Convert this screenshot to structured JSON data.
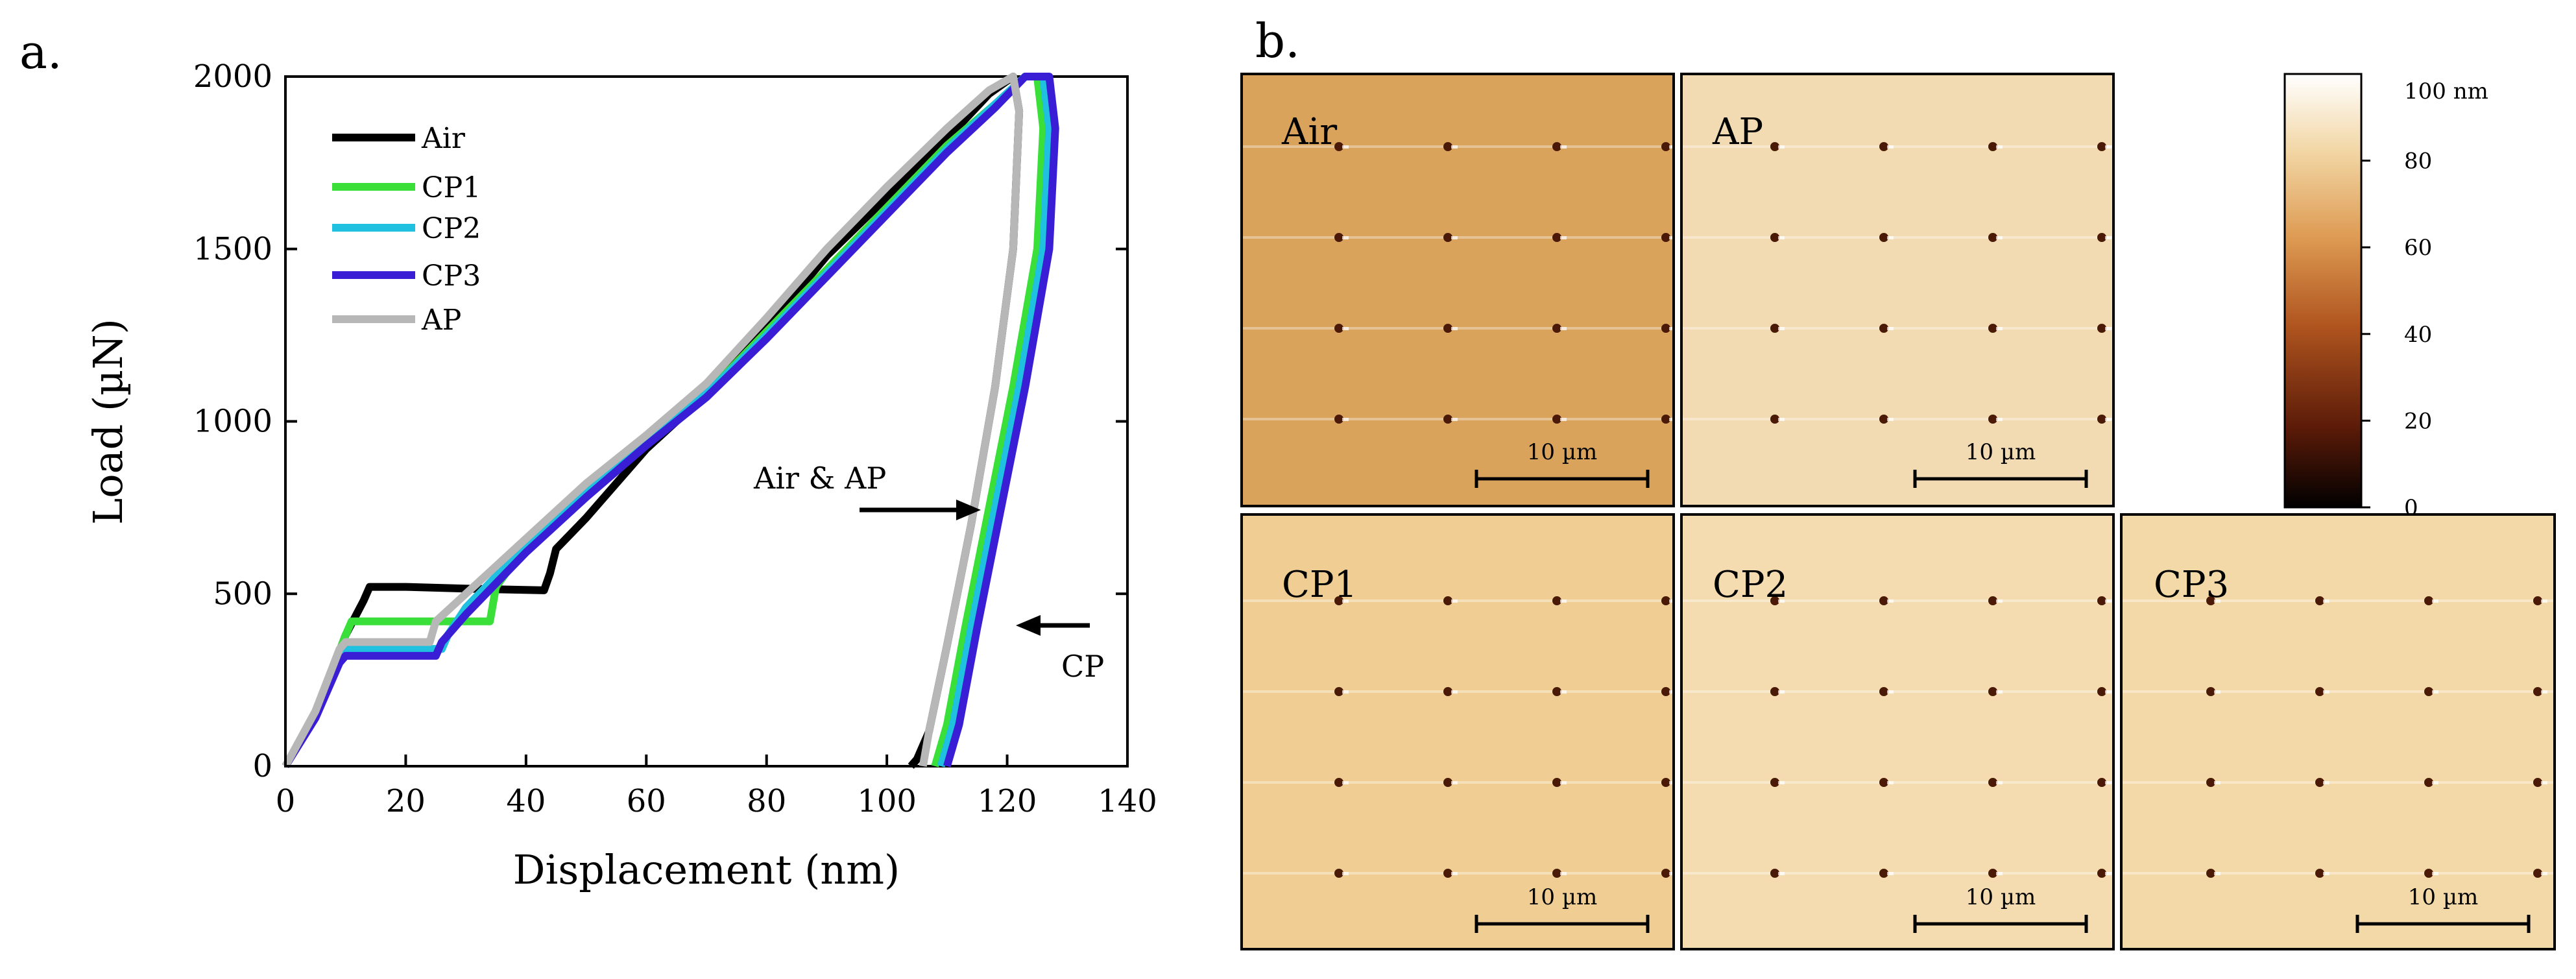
{
  "panel_a": {
    "label": "a."
  },
  "panel_b": {
    "label": "b."
  },
  "chart_data": {
    "type": "line",
    "title": "",
    "xlabel": "Displacement (nm)",
    "ylabel": "Load (µN)",
    "xlim": [
      0,
      140
    ],
    "ylim": [
      0,
      2000
    ],
    "xticks": [
      0,
      20,
      40,
      60,
      80,
      100,
      120,
      140
    ],
    "yticks": [
      0,
      500,
      1000,
      1500,
      2000
    ],
    "legend_position": "top-left",
    "series": [
      {
        "name": "Air",
        "color": "#000000",
        "x": [
          0,
          5,
          10,
          13,
          14,
          15,
          20,
          30,
          43,
          44,
          45,
          50,
          60,
          70,
          80,
          90,
          100,
          110,
          117,
          121,
          122,
          121,
          118,
          114,
          110,
          107,
          105,
          104
        ],
        "y": [
          0,
          150,
          380,
          480,
          520,
          520,
          520,
          515,
          510,
          560,
          630,
          720,
          920,
          1080,
          1270,
          1480,
          1650,
          1820,
          1950,
          2000,
          1900,
          1500,
          1100,
          700,
          350,
          100,
          20,
          0
        ]
      },
      {
        "name": "CP1",
        "color": "#3adf3a",
        "x": [
          0,
          5,
          10,
          11,
          15,
          25,
          34,
          35,
          40,
          50,
          60,
          70,
          80,
          90,
          100,
          110,
          118,
          123,
          125,
          126,
          125,
          121,
          117,
          113,
          110,
          108
        ],
        "y": [
          0,
          150,
          380,
          420,
          420,
          420,
          420,
          520,
          640,
          800,
          950,
          1080,
          1260,
          1440,
          1620,
          1800,
          1920,
          2000,
          2000,
          1850,
          1500,
          1100,
          750,
          400,
          120,
          0
        ]
      },
      {
        "name": "CP2",
        "color": "#1fc0e0",
        "x": [
          0,
          5,
          9,
          10,
          15,
          20,
          26,
          27,
          30,
          40,
          50,
          60,
          70,
          80,
          90,
          100,
          110,
          118,
          123,
          126,
          127,
          126,
          122,
          118,
          114,
          111,
          109
        ],
        "y": [
          0,
          150,
          320,
          340,
          340,
          340,
          340,
          380,
          460,
          640,
          790,
          940,
          1080,
          1250,
          1430,
          1610,
          1790,
          1920,
          2000,
          2000,
          1850,
          1500,
          1100,
          750,
          400,
          120,
          0
        ]
      },
      {
        "name": "CP3",
        "color": "#3a1ed6",
        "x": [
          0,
          5,
          9,
          10,
          15,
          20,
          25,
          26,
          30,
          40,
          50,
          60,
          70,
          80,
          90,
          100,
          110,
          118,
          123,
          127,
          128,
          127,
          123,
          119,
          115,
          112,
          110
        ],
        "y": [
          0,
          140,
          300,
          320,
          320,
          320,
          320,
          360,
          440,
          620,
          780,
          930,
          1070,
          1240,
          1420,
          1600,
          1780,
          1910,
          2000,
          2000,
          1850,
          1500,
          1100,
          750,
          400,
          120,
          0
        ]
      },
      {
        "name": "AP",
        "color": "#b7b7b7",
        "x": [
          0,
          5,
          9,
          10,
          15,
          20,
          24,
          25,
          30,
          40,
          50,
          60,
          70,
          80,
          90,
          100,
          110,
          117,
          121,
          122,
          121,
          118,
          114,
          110,
          107,
          106
        ],
        "y": [
          0,
          160,
          340,
          360,
          360,
          360,
          360,
          420,
          500,
          660,
          820,
          960,
          1110,
          1300,
          1500,
          1680,
          1850,
          1960,
          2000,
          1900,
          1500,
          1100,
          700,
          350,
          100,
          0
        ]
      }
    ],
    "annotations": [
      {
        "text": "Air & AP",
        "arrow_tip": [
          111,
          740
        ]
      },
      {
        "text": "CP",
        "arrow_tip": [
          118,
          410
        ]
      }
    ]
  },
  "afm_panels": [
    {
      "label": "Air",
      "scale_bar": "10 µm",
      "background": "#d9a35c"
    },
    {
      "label": "AP",
      "scale_bar": "10 µm",
      "background": "#f2dbb2"
    },
    {
      "label": "CP1",
      "scale_bar": "10 µm",
      "background": "#f0ce93"
    },
    {
      "label": "CP2",
      "scale_bar": "10 µm",
      "background": "#f5dcb0"
    },
    {
      "label": "CP3",
      "scale_bar": "10 µm",
      "background": "#f4d9a8"
    }
  ],
  "colorbar": {
    "unit_label": "100 nm",
    "ticks": [
      0,
      20,
      40,
      60,
      80
    ],
    "range": [
      0,
      100
    ],
    "colors": [
      "#000000",
      "#5a1a08",
      "#b0551f",
      "#dd9a52",
      "#f2d6a4",
      "#ffffff"
    ]
  }
}
